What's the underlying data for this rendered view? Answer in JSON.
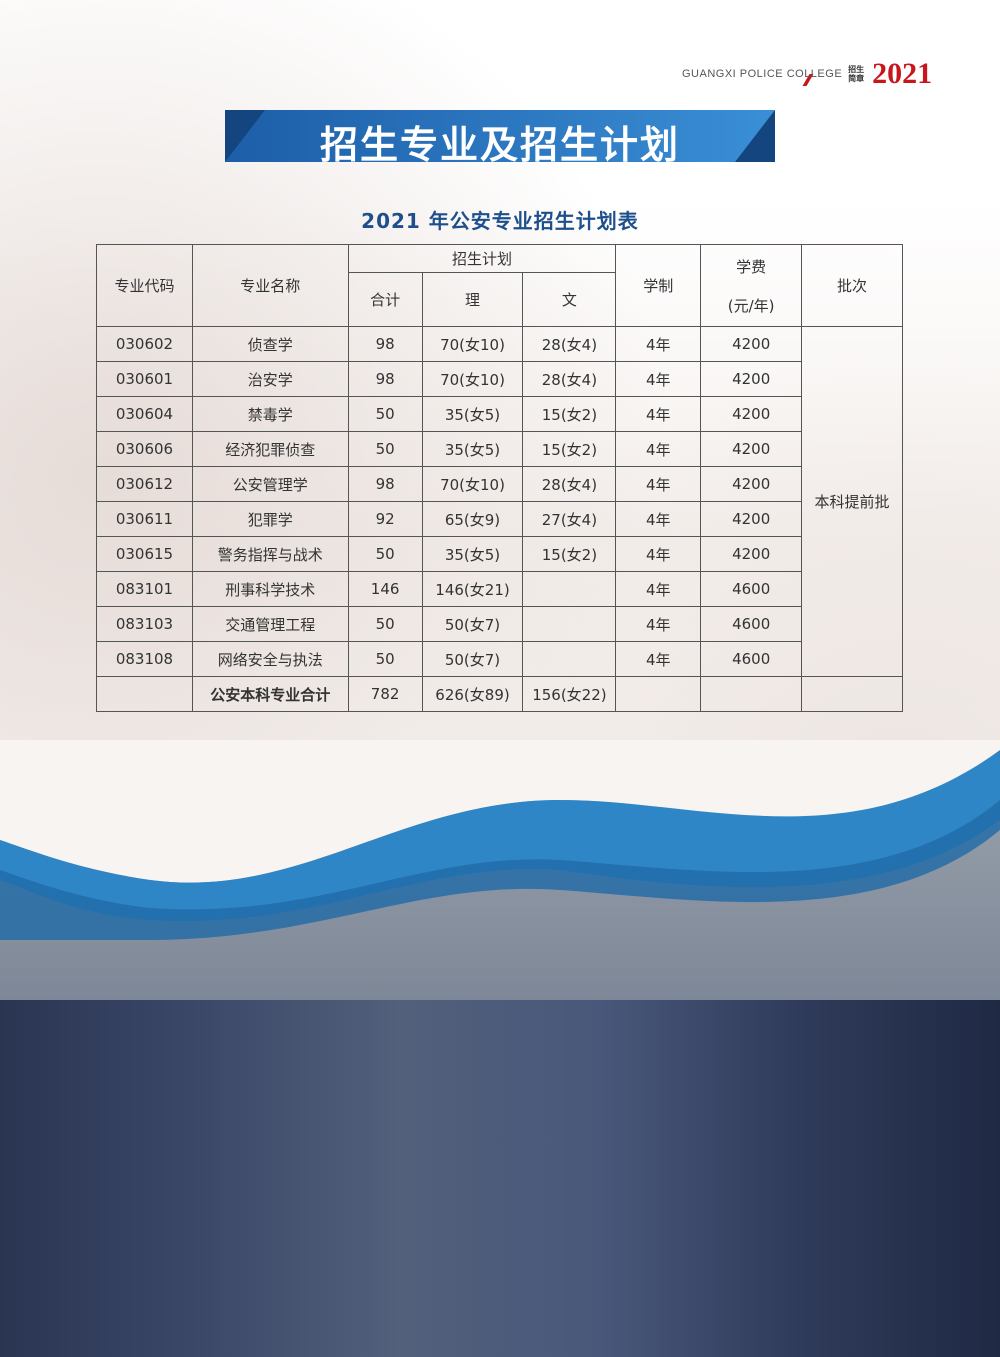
{
  "header": {
    "college_en": "GUANGXI POLICE COLLEGE",
    "brochure_label_1": "招生",
    "brochure_label_2": "简章",
    "year": "2021"
  },
  "banner_title": "招生专业及招生计划",
  "table_title": "2021 年公安专业招生计划表",
  "table": {
    "headers": {
      "code": "专业代码",
      "name": "专业名称",
      "plan": "招生计划",
      "total": "合计",
      "science": "理",
      "arts": "文",
      "duration": "学制",
      "fee_line1": "学费",
      "fee_line2": "(元/年)",
      "batch": "批次"
    },
    "rows": [
      {
        "code": "030602",
        "name": "侦查学",
        "total": "98",
        "science": "70(女10)",
        "arts": "28(女4)",
        "duration": "4年",
        "fee": "4200"
      },
      {
        "code": "030601",
        "name": "治安学",
        "total": "98",
        "science": "70(女10)",
        "arts": "28(女4)",
        "duration": "4年",
        "fee": "4200"
      },
      {
        "code": "030604",
        "name": "禁毒学",
        "total": "50",
        "science": "35(女5)",
        "arts": "15(女2)",
        "duration": "4年",
        "fee": "4200"
      },
      {
        "code": "030606",
        "name": "经济犯罪侦查",
        "total": "50",
        "science": "35(女5)",
        "arts": "15(女2)",
        "duration": "4年",
        "fee": "4200"
      },
      {
        "code": "030612",
        "name": "公安管理学",
        "total": "98",
        "science": "70(女10)",
        "arts": "28(女4)",
        "duration": "4年",
        "fee": "4200"
      },
      {
        "code": "030611",
        "name": "犯罪学",
        "total": "92",
        "science": "65(女9)",
        "arts": "27(女4)",
        "duration": "4年",
        "fee": "4200"
      },
      {
        "code": "030615",
        "name": "警务指挥与战术",
        "total": "50",
        "science": "35(女5)",
        "arts": "15(女2)",
        "duration": "4年",
        "fee": "4200"
      },
      {
        "code": "083101",
        "name": "刑事科学技术",
        "total": "146",
        "science": "146(女21)",
        "arts": "",
        "duration": "4年",
        "fee": "4600"
      },
      {
        "code": "083103",
        "name": "交通管理工程",
        "total": "50",
        "science": "50(女7)",
        "arts": "",
        "duration": "4年",
        "fee": "4600"
      },
      {
        "code": "083108",
        "name": "网络安全与执法",
        "total": "50",
        "science": "50(女7)",
        "arts": "",
        "duration": "4年",
        "fee": "4600"
      }
    ],
    "batch": "本科提前批",
    "summary": {
      "name": "公安本科专业合计",
      "total": "782",
      "science": "626(女89)",
      "arts": "156(女22)"
    }
  },
  "colors": {
    "brand_blue": "#1d5ea8",
    "accent_red": "#c8161d"
  }
}
